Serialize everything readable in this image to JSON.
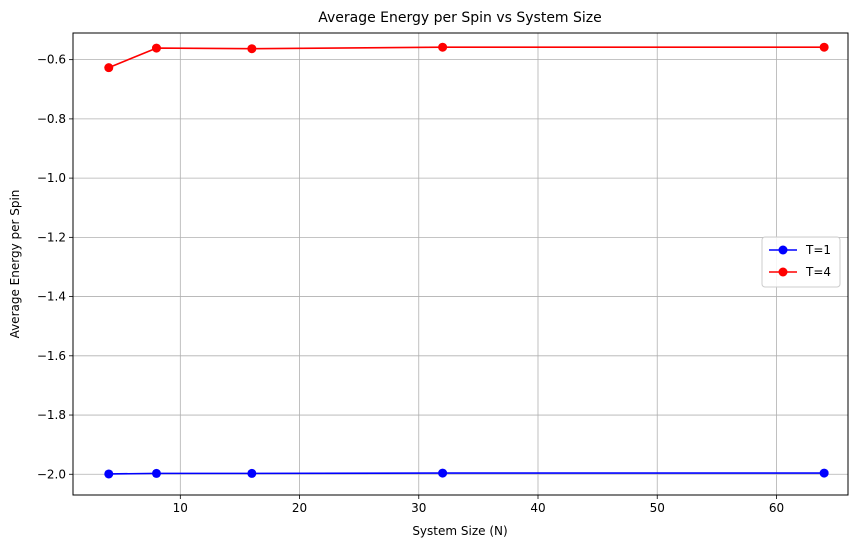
{
  "chart_data": {
    "type": "line",
    "title": "Average Energy per Spin vs System Size",
    "xlabel": "System Size (N)",
    "ylabel": "Average Energy per Spin",
    "xlim": [
      1,
      66
    ],
    "ylim": [
      -2.07,
      -0.51
    ],
    "xticks": [
      10,
      20,
      30,
      40,
      50,
      60
    ],
    "yticks": [
      -2.0,
      -1.8,
      -1.6,
      -1.4,
      -1.2,
      -1.0,
      -0.8,
      -0.6
    ],
    "grid": true,
    "legend_position": "center-right",
    "x": [
      4,
      8,
      16,
      32,
      64
    ],
    "series": [
      {
        "name": "T=1",
        "color": "#0000ff",
        "marker": "circle",
        "values": [
          -1.999,
          -1.997,
          -1.997,
          -1.996,
          -1.996
        ]
      },
      {
        "name": "T=4",
        "color": "#ff0000",
        "marker": "circle",
        "values": [
          -0.627,
          -0.561,
          -0.563,
          -0.558,
          -0.558
        ]
      }
    ]
  }
}
